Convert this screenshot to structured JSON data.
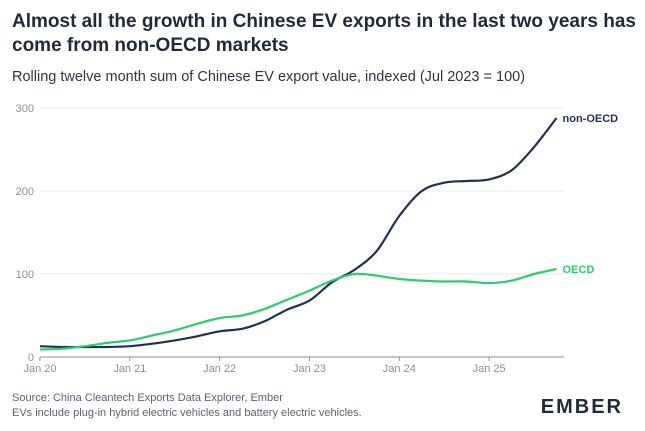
{
  "header": {
    "title": "Almost all the growth in Chinese EV exports in the last two years has come from non-OECD markets",
    "subtitle": "Rolling twelve month sum of Chinese EV export value, indexed (Jul 2023 = 100)"
  },
  "footer": {
    "source": "Source: China Cleantech Exports Data Explorer, Ember",
    "note": "EVs include plug-in hybrid electric vehicles and battery electric vehicles.",
    "logo_text": "EMBER"
  },
  "colors": {
    "non_oecd": "#1f3157",
    "oecd": "#2ecc71",
    "axis": "#8a8f98",
    "grid": "#e6e8eb"
  },
  "chart_data": {
    "type": "line",
    "title": "Almost all the growth in Chinese EV exports in the last two years has come from non-OECD markets",
    "subtitle": "Rolling twelve month sum of Chinese EV export value, indexed (Jul 2023 = 100)",
    "xlabel": "",
    "ylabel": "",
    "ylim": [
      0,
      300
    ],
    "yticks": [
      0,
      100,
      200,
      300
    ],
    "xticks": [
      "Jan 20",
      "Jan 21",
      "Jan 22",
      "Jan 23",
      "Jan 24",
      "Jan 25"
    ],
    "grid": "horizontal",
    "x": [
      "2020-01",
      "2020-04",
      "2020-07",
      "2020-10",
      "2021-01",
      "2021-04",
      "2021-07",
      "2021-10",
      "2022-01",
      "2022-04",
      "2022-07",
      "2022-10",
      "2023-01",
      "2023-04",
      "2023-07",
      "2023-10",
      "2024-01",
      "2024-04",
      "2024-07",
      "2024-10",
      "2025-01",
      "2025-04",
      "2025-07",
      "2025-10"
    ],
    "series": [
      {
        "name": "non-OECD",
        "values": [
          13,
          12,
          12,
          12,
          13,
          16,
          20,
          25,
          31,
          34,
          43,
          57,
          68,
          90,
          105,
          128,
          170,
          200,
          210,
          212,
          214,
          225,
          253,
          288
        ]
      },
      {
        "name": "OECD",
        "values": [
          9,
          10,
          13,
          17,
          20,
          26,
          32,
          40,
          47,
          50,
          58,
          69,
          80,
          92,
          100,
          98,
          94,
          92,
          91,
          91,
          89,
          92,
          100,
          106
        ]
      }
    ]
  }
}
